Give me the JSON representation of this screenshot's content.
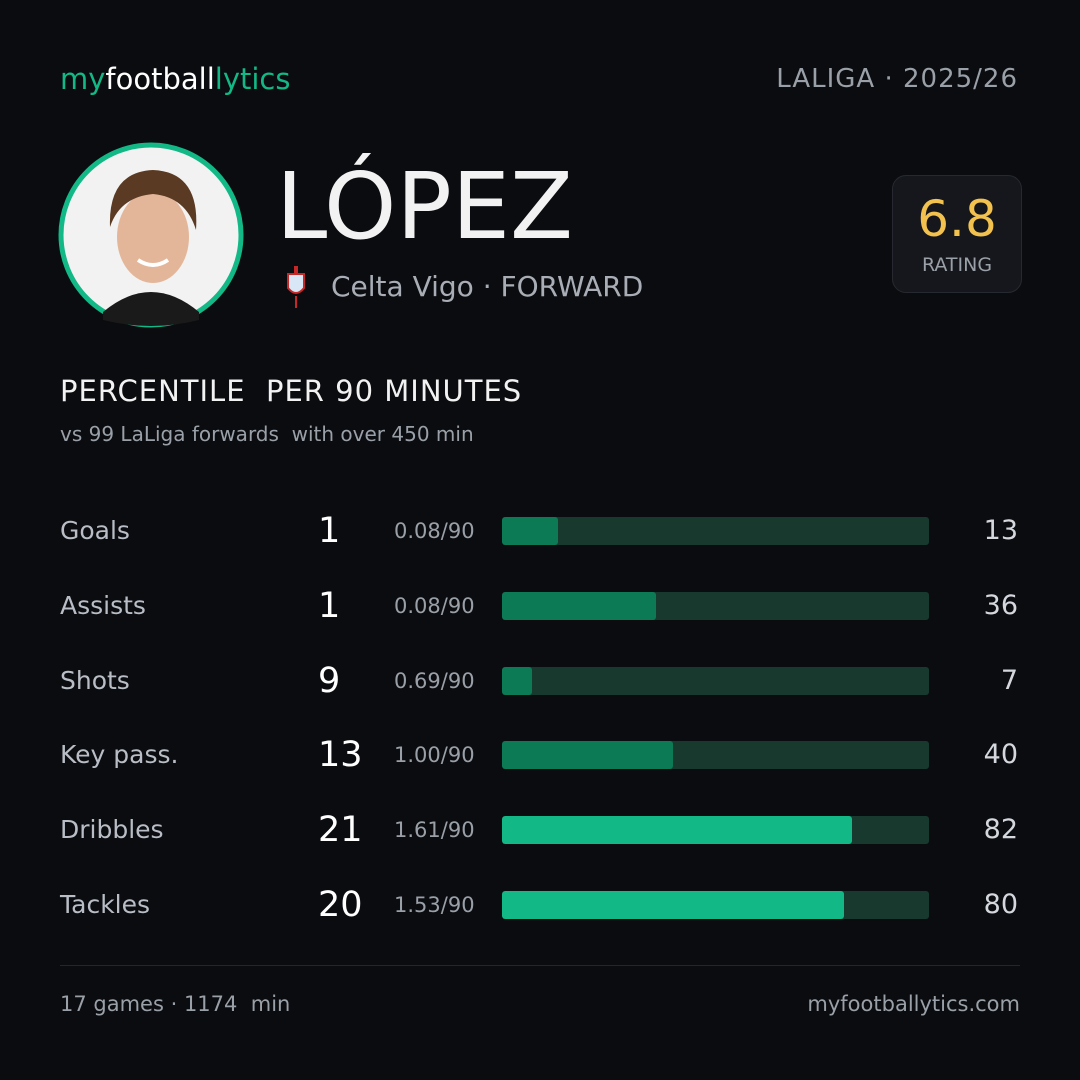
{
  "header": {
    "logo": [
      "my",
      "football",
      "lytics"
    ],
    "league": "LALIGA · 2025/26"
  },
  "player": {
    "name": "LÓPEZ",
    "team": "Celta Vigo · FORWARD",
    "rating": 6.8,
    "rating_label": "RATING"
  },
  "section": {
    "title": "PERCENTILE  PER 90 MINUTES",
    "subtitle": "vs 99 LaLiga forwards  with over 450 min"
  },
  "stats": [
    {
      "label": "Goals",
      "count": 1,
      "per90": "0.08/90",
      "percentile": 13,
      "color": "#0c7a55"
    },
    {
      "label": "Assists",
      "count": 1,
      "per90": "0.08/90",
      "percentile": 36,
      "color": "#0c7a55"
    },
    {
      "label": "Shots",
      "count": 9,
      "per90": "0.69/90",
      "percentile": 7,
      "color": "#0c7a55"
    },
    {
      "label": "Key pass.",
      "count": 13,
      "per90": "1.00/90",
      "percentile": 40,
      "color": "#0c7a55"
    },
    {
      "label": "Dribbles",
      "count": 21,
      "per90": "1.61/90",
      "percentile": 82,
      "color": "#12b886"
    },
    {
      "label": "Tackles",
      "count": 20,
      "per90": "1.53/90",
      "percentile": 80,
      "color": "#12b886"
    }
  ],
  "footer": {
    "summary": "17 games · 1174  min",
    "site": "myfootballytics.com"
  }
}
